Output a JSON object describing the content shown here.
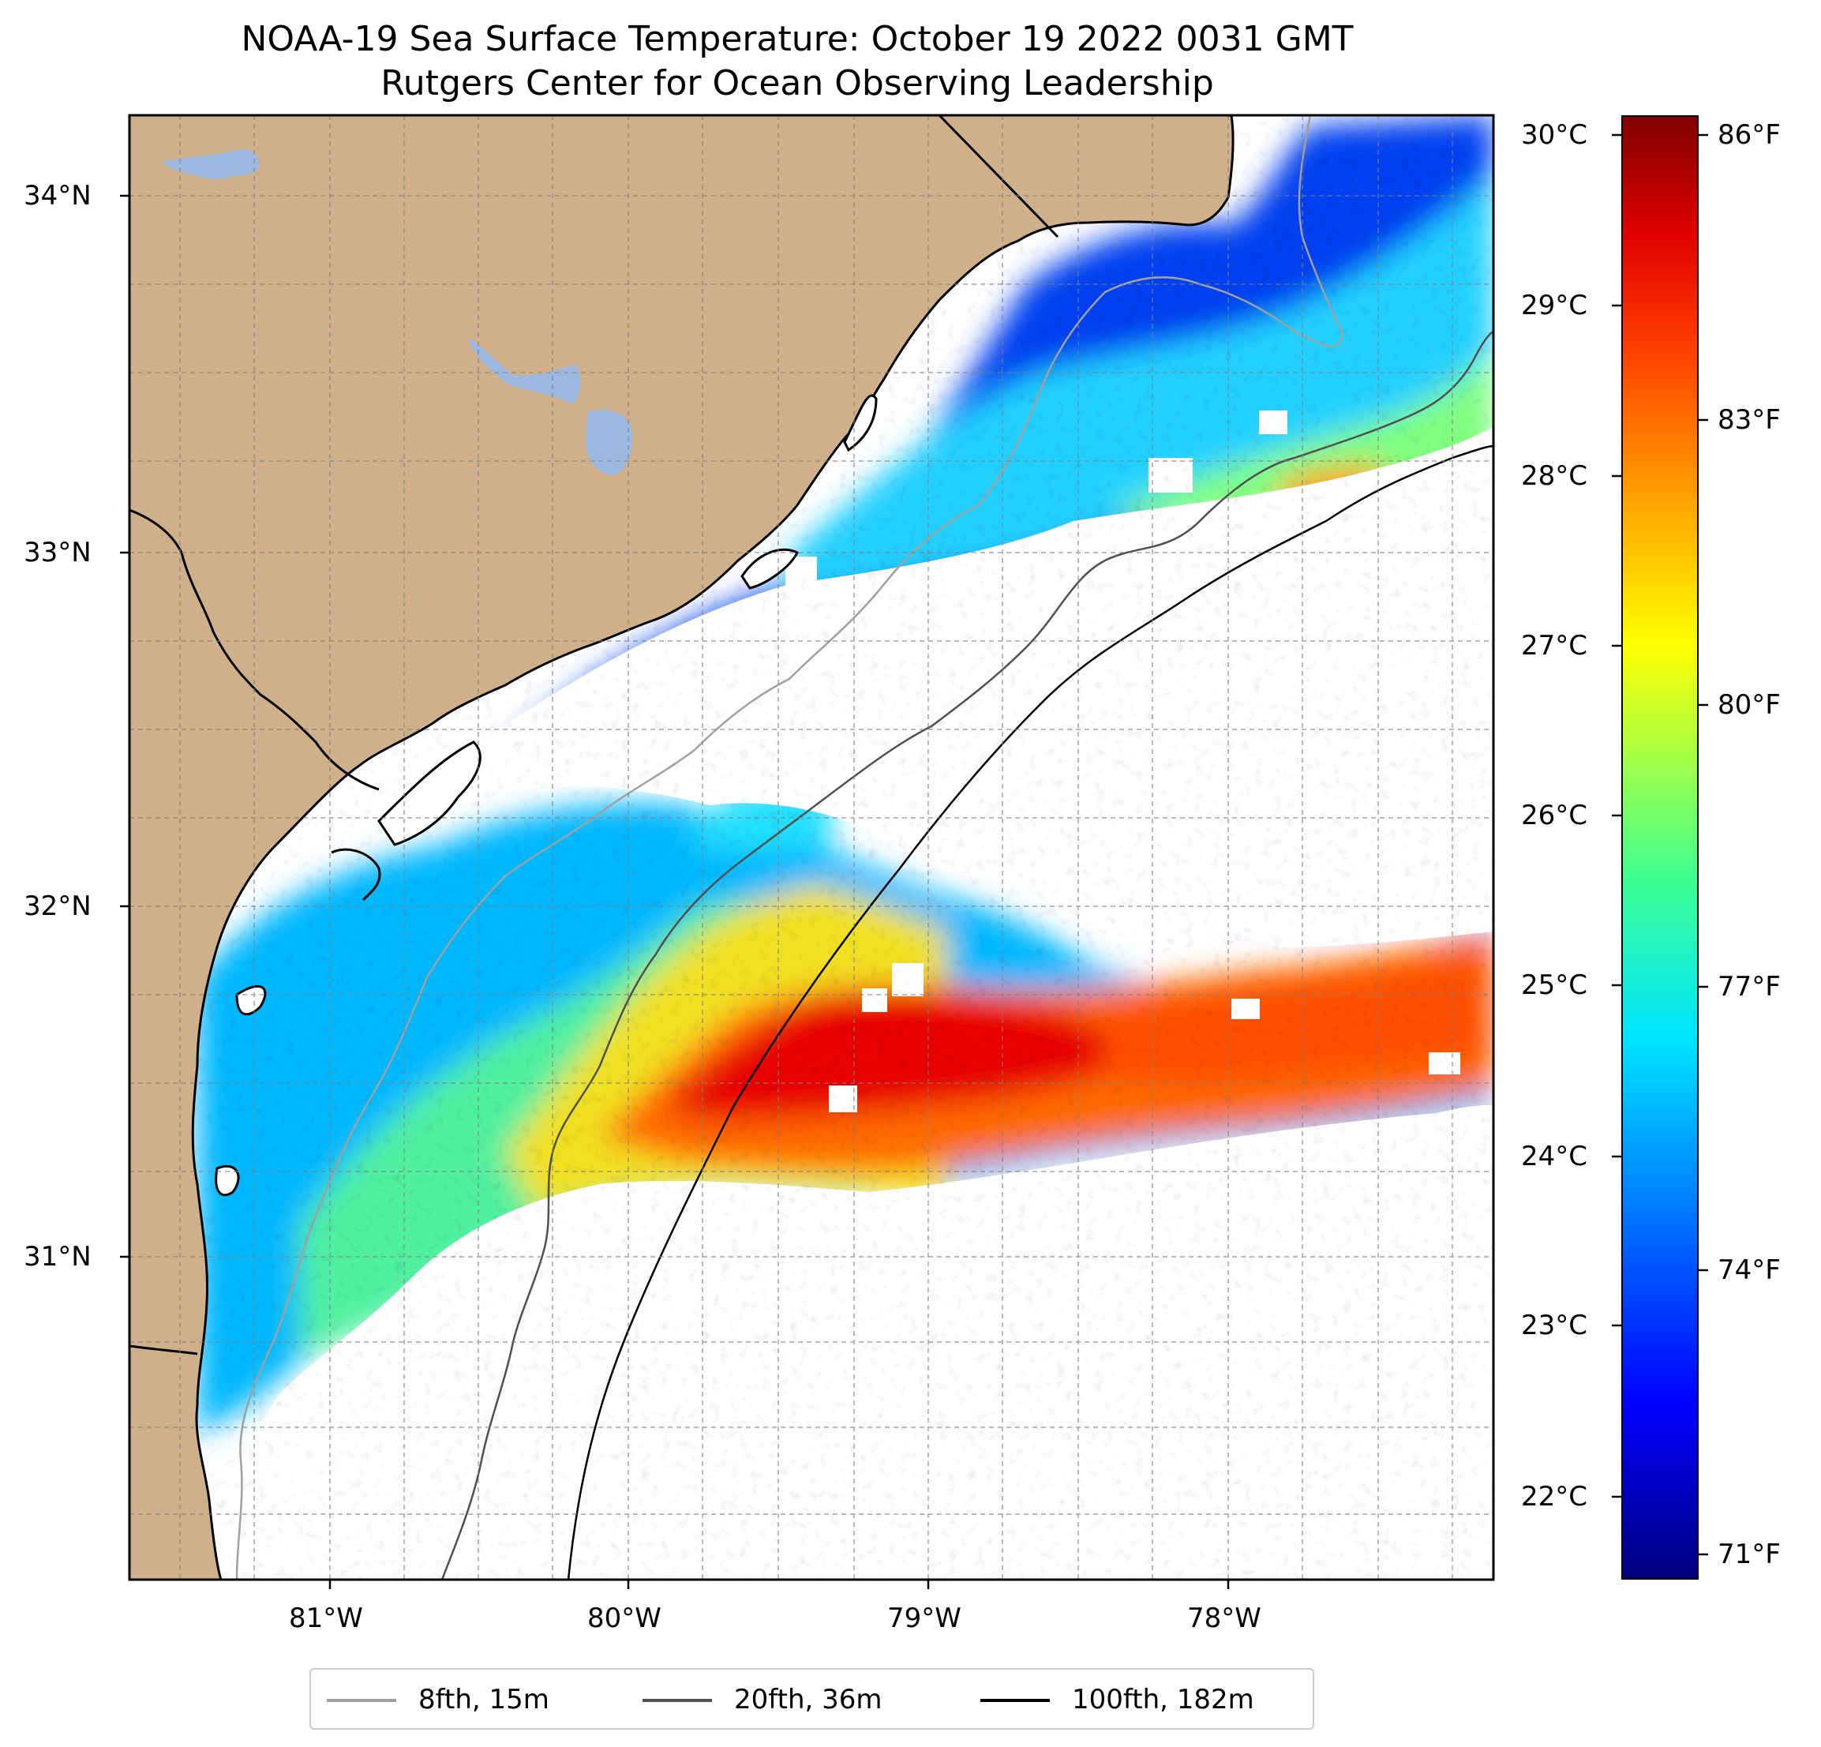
{
  "title": {
    "line1": "NOAA-19 Sea Surface Temperature: October 19 2022 0031 GMT",
    "line2": "Rutgers Center for Ocean Observing Leadership"
  },
  "map": {
    "lat_labels": [
      "34°N",
      "33°N",
      "32°N",
      "31°N"
    ],
    "lon_labels": [
      "81°W",
      "80°W",
      "79°W",
      "78°W"
    ],
    "colors": {
      "land": "#cfb08a",
      "lakes": "#9db8e0",
      "ocean_nodata": "#ffffff"
    }
  },
  "colorbar": {
    "celsius_labels": [
      "30°C",
      "29°C",
      "28°C",
      "27°C",
      "26°C",
      "25°C",
      "24°C",
      "23°C",
      "22°C"
    ],
    "fahrenheit_labels": [
      "86°F",
      "83°F",
      "80°F",
      "77°F",
      "74°F",
      "71°F"
    ],
    "colors": [
      "#000080",
      "#0000ff",
      "#0080ff",
      "#00e5ff",
      "#40ff90",
      "#b0ff40",
      "#ffff00",
      "#ffa000",
      "#ff4000",
      "#e00000",
      "#800000"
    ]
  },
  "legend": {
    "items": [
      {
        "label": "8fth, 15m",
        "color": "#a0a0a0"
      },
      {
        "label": "20fth, 36m",
        "color": "#505050"
      },
      {
        "label": "100fth, 182m",
        "color": "#000000"
      }
    ]
  }
}
